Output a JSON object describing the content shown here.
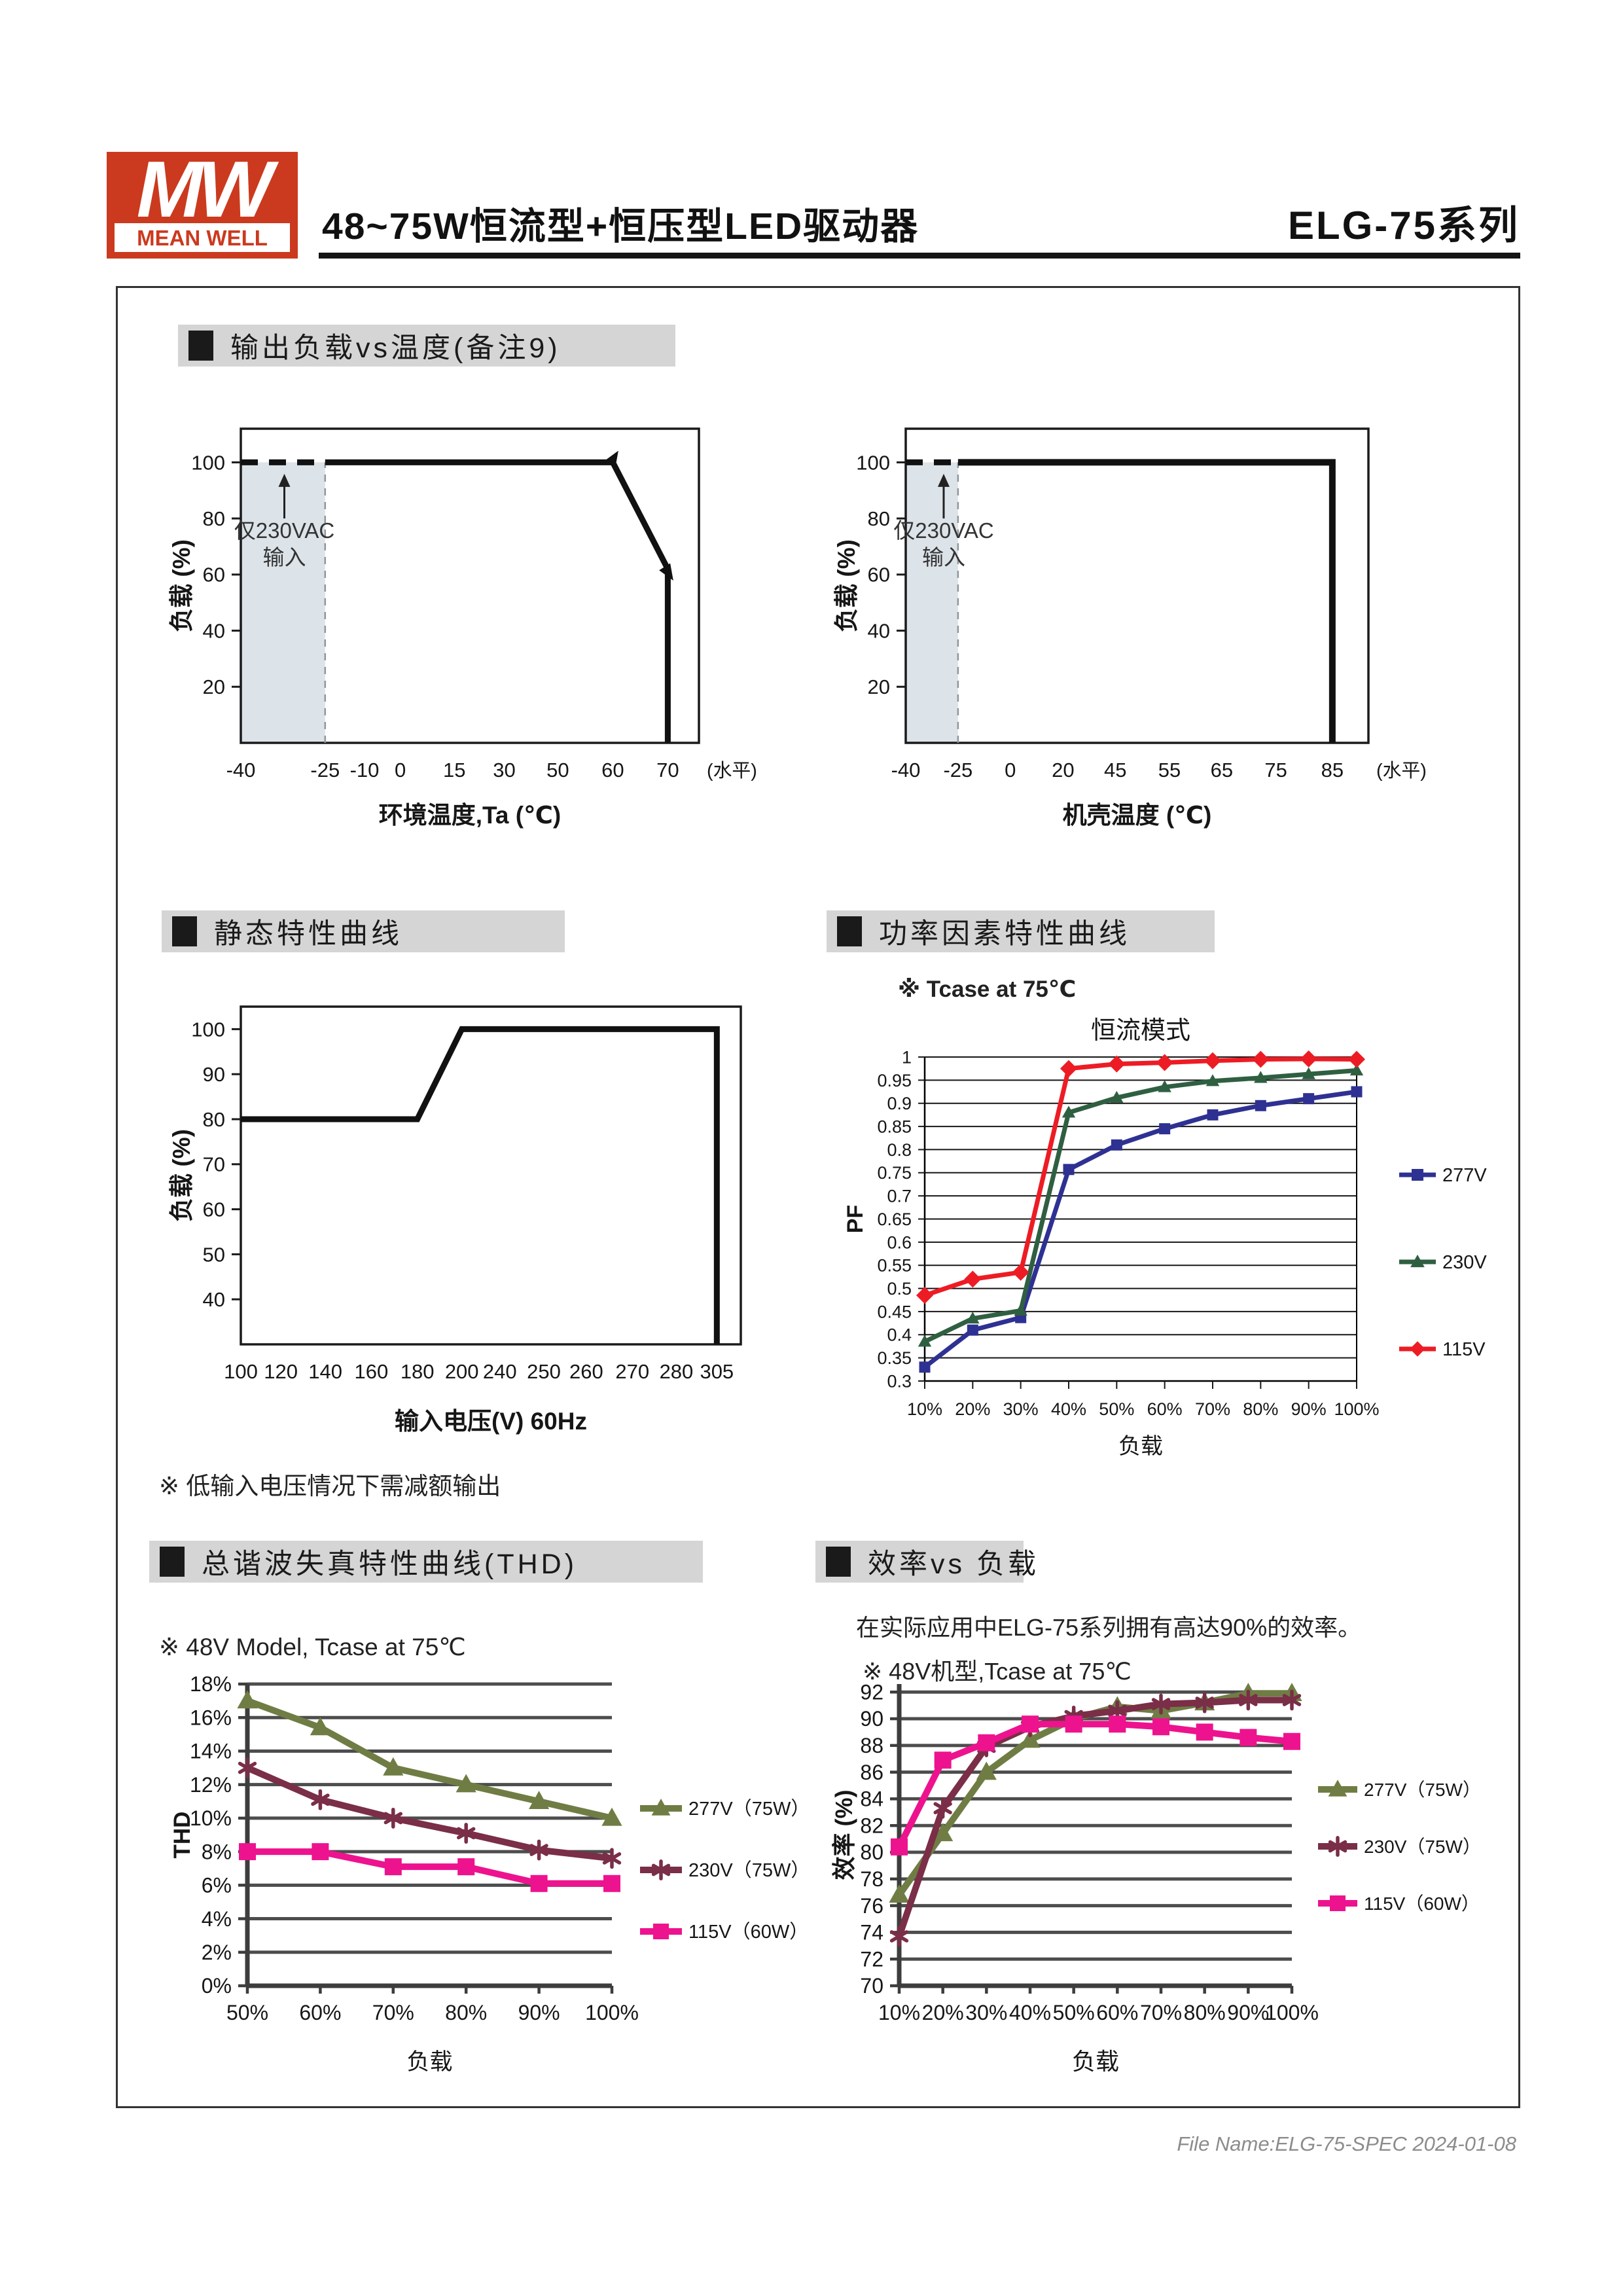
{
  "header": {
    "logo_mw": "MW",
    "logo_brand": "MEAN WELL",
    "title": "48~75W恒流型+恒压型LED驱动器",
    "series": "ELG-75系列"
  },
  "sections": {
    "derating": {
      "label": "输出负载vs温度(备注9)"
    },
    "static": {
      "label": "静态特性曲线"
    },
    "pf": {
      "label": "功率因素特性曲线"
    },
    "thd": {
      "label": "总谐波失真特性曲线(THD)"
    },
    "eff": {
      "label": "效率vs 负载"
    }
  },
  "notes": {
    "pf": "※ Tcase at 75℃",
    "static": "※ 低输入电压情况下需减额输出",
    "thd": "※ 48V Model, Tcase at 75℃",
    "eff_desc": "在实际应用中ELG-75系列拥有高达90%的效率。",
    "eff": "※ 48V机型,Tcase at 75℃"
  },
  "footer": "File Name:ELG-75-SPEC 2024-01-08",
  "chart_data": [
    {
      "id": "amb",
      "type": "line",
      "title": "",
      "xlabel": "环境温度,Ta (℃)",
      "ylabel": "负载 (%)",
      "x_axis_note": "(水平)",
      "ylim": [
        0,
        112
      ],
      "yticks": [
        20,
        40,
        60,
        80,
        100
      ],
      "ytick_labels": [
        "20",
        "40",
        "60",
        "80",
        "100"
      ],
      "xticks": [
        {
          "label": "-40",
          "f": 0
        },
        {
          "label": "-25",
          "f": 0.184
        },
        {
          "label": "-10",
          "f": 0.27
        },
        {
          "label": "0",
          "f": 0.348
        },
        {
          "label": "15",
          "f": 0.466
        },
        {
          "label": "30",
          "f": 0.575
        },
        {
          "label": "50",
          "f": 0.692
        },
        {
          "label": "60",
          "f": 0.812
        },
        {
          "label": "70",
          "f": 0.932
        }
      ],
      "shade": {
        "f0": 0,
        "f1": 0.184,
        "v0": 0,
        "v1": 100,
        "color": "#dce3e9"
      },
      "lines": [
        {
          "name": "dashed-100pct-230vac",
          "color": "#111111",
          "width": 9,
          "dash": [
            26,
            17
          ],
          "points": [
            [
              0,
              100
            ],
            [
              0.184,
              100
            ]
          ]
        },
        {
          "name": "shade-boundary-dashed",
          "color": "#8f979e",
          "width": 2.5,
          "dash": [
            11,
            10
          ],
          "points": [
            [
              0.184,
              0
            ],
            [
              0.184,
              100
            ]
          ]
        },
        {
          "name": "derating-curve",
          "color": "#111111",
          "width": 9,
          "points": [
            [
              0.184,
              100
            ],
            [
              0.812,
              100
            ],
            [
              0.932,
              62
            ],
            [
              0.932,
              0
            ]
          ]
        }
      ],
      "arrows": [
        {
          "f": 0.812,
          "v": 101,
          "rot": 32
        },
        {
          "f": 0.932,
          "v": 61,
          "rot": 148
        }
      ],
      "annotation": {
        "lines": [
          "仅230VAC",
          "输入"
        ],
        "f": 0.095,
        "text_v": [
          73,
          63.5
        ],
        "arrow_v": [
          80,
          95
        ]
      }
    },
    {
      "id": "case",
      "type": "line",
      "title": "",
      "xlabel": "机壳温度 (℃)",
      "ylabel": "负载 (%)",
      "x_axis_note": "(水平)",
      "ylim": [
        0,
        112
      ],
      "yticks": [
        20,
        40,
        60,
        80,
        100
      ],
      "ytick_labels": [
        "20",
        "40",
        "60",
        "80",
        "100"
      ],
      "xticks": [
        {
          "label": "-40",
          "f": 0
        },
        {
          "label": "-25",
          "f": 0.113
        },
        {
          "label": "0",
          "f": 0.226
        },
        {
          "label": "20",
          "f": 0.34
        },
        {
          "label": "45",
          "f": 0.453
        },
        {
          "label": "55",
          "f": 0.57
        },
        {
          "label": "65",
          "f": 0.683
        },
        {
          "label": "75",
          "f": 0.8
        },
        {
          "label": "85",
          "f": 0.922
        }
      ],
      "shade": {
        "f0": 0,
        "f1": 0.113,
        "v0": 0,
        "v1": 100,
        "color": "#dce3e9"
      },
      "lines": [
        {
          "name": "dashed-100pct-230vac",
          "color": "#111111",
          "width": 9,
          "dash": [
            26,
            17
          ],
          "points": [
            [
              0,
              100
            ],
            [
              0.113,
              100
            ]
          ]
        },
        {
          "name": "shade-boundary-dashed",
          "color": "#8f979e",
          "width": 2.5,
          "dash": [
            11,
            10
          ],
          "points": [
            [
              0.113,
              0
            ],
            [
              0.113,
              100
            ]
          ]
        },
        {
          "name": "derating-curve",
          "color": "#111111",
          "width": 10,
          "points": [
            [
              0.113,
              100
            ],
            [
              0.922,
              100
            ],
            [
              0.922,
              0
            ]
          ]
        }
      ],
      "annotation": {
        "lines": [
          "仅230VAC",
          "输入"
        ],
        "f": 0.082,
        "text_v": [
          73,
          63.5
        ],
        "arrow_v": [
          80,
          95
        ]
      }
    },
    {
      "id": "static",
      "type": "line",
      "title": "",
      "xlabel": "输入电压(V) 60Hz",
      "ylabel": "负载 (%)",
      "ylim": [
        30,
        105
      ],
      "yticks": [
        40,
        50,
        60,
        70,
        80,
        90,
        100
      ],
      "ytick_labels": [
        "40",
        "50",
        "60",
        "70",
        "80",
        "90",
        "100"
      ],
      "xticks": [
        {
          "label": "100",
          "f": 0
        },
        {
          "label": "120",
          "f": 0.08
        },
        {
          "label": "140",
          "f": 0.169
        },
        {
          "label": "160",
          "f": 0.261
        },
        {
          "label": "180",
          "f": 0.353
        },
        {
          "label": "200",
          "f": 0.442
        },
        {
          "label": "240",
          "f": 0.518
        },
        {
          "label": "250",
          "f": 0.606
        },
        {
          "label": "260",
          "f": 0.691
        },
        {
          "label": "270",
          "f": 0.783
        },
        {
          "label": "280",
          "f": 0.871
        },
        {
          "label": "305",
          "f": 0.952
        }
      ],
      "lines": [
        {
          "name": "static-curve",
          "color": "#111111",
          "width": 9,
          "points": [
            [
              0,
              80
            ],
            [
              0.353,
              80
            ],
            [
              0.442,
              100
            ],
            [
              0.952,
              100
            ],
            [
              0.952,
              30
            ]
          ]
        }
      ]
    },
    {
      "id": "pf",
      "type": "line-category",
      "title": "恒流模式",
      "xlabel": "负载",
      "ylabel": "PF",
      "categories": [
        "10%",
        "20%",
        "30%",
        "40%",
        "50%",
        "60%",
        "70%",
        "80%",
        "90%",
        "100%"
      ],
      "ylim": [
        0.3,
        1.0
      ],
      "yticks": [
        0.3,
        0.35,
        0.4,
        0.45,
        0.5,
        0.55,
        0.6,
        0.65,
        0.7,
        0.75,
        0.8,
        0.85,
        0.9,
        0.95,
        1
      ],
      "ytick_labels": [
        "0.3",
        "0.35",
        "0.4",
        "0.45",
        "0.5",
        "0.55",
        "0.6",
        "0.65",
        "0.7",
        "0.75",
        "0.8",
        "0.85",
        "0.9",
        "0.95",
        "1"
      ],
      "legend_position": "right",
      "series": [
        {
          "name": "277V",
          "color": "#2E3192",
          "marker": "square",
          "values": [
            0.33,
            0.41,
            0.437,
            0.757,
            0.81,
            0.845,
            0.875,
            0.895,
            0.91,
            0.925
          ]
        },
        {
          "name": "230V",
          "color": "#2F5F41",
          "marker": "triangle",
          "values": [
            0.385,
            0.435,
            0.452,
            0.88,
            0.912,
            0.935,
            0.948,
            0.955,
            0.963,
            0.971
          ]
        },
        {
          "name": "115V",
          "color": "#ED1C24",
          "marker": "diamond",
          "values": [
            0.485,
            0.52,
            0.535,
            0.975,
            0.985,
            0.988,
            0.992,
            0.995,
            0.996,
            0.995
          ]
        }
      ]
    },
    {
      "id": "thd",
      "type": "line-category",
      "title": "",
      "xlabel": "负载",
      "ylabel": "THD",
      "categories": [
        "50%",
        "60%",
        "70%",
        "80%",
        "90%",
        "100%"
      ],
      "ylim": [
        0,
        18
      ],
      "yticks": [
        0,
        2,
        4,
        6,
        8,
        10,
        12,
        14,
        16,
        18
      ],
      "ytick_labels": [
        "0%",
        "2%",
        "4%",
        "6%",
        "8%",
        "10%",
        "12%",
        "14%",
        "16%",
        "18%"
      ],
      "legend_position": "right",
      "series": [
        {
          "name": "277V（75W）",
          "color": "#6F7D44",
          "marker": "triangle",
          "values": [
            17,
            15.4,
            13,
            12,
            11,
            10
          ]
        },
        {
          "name": "230V（75W）",
          "color": "#7A2E47",
          "marker": "star",
          "values": [
            13,
            11.1,
            10,
            9.1,
            8.1,
            7.6
          ]
        },
        {
          "name": "115V（60W）",
          "color": "#ED138E",
          "marker": "square",
          "values": [
            8,
            8,
            7.1,
            7.1,
            6.1,
            6.1
          ]
        }
      ]
    },
    {
      "id": "eff",
      "type": "line-category",
      "title": "",
      "xlabel": "负载",
      "ylabel": "效率 (%)",
      "categories": [
        "10%",
        "20%",
        "30%",
        "40%",
        "50%",
        "60%",
        "70%",
        "80%",
        "90%",
        "100%"
      ],
      "ylim": [
        70,
        92.6
      ],
      "yticks": [
        70,
        72,
        74,
        76,
        78,
        80,
        82,
        84,
        86,
        88,
        90,
        92
      ],
      "ytick_labels": [
        "70",
        "72",
        "74",
        "76",
        "78",
        "80",
        "82",
        "84",
        "86",
        "88",
        "90",
        "92"
      ],
      "legend_position": "right",
      "series": [
        {
          "name": "277V（75W）",
          "color": "#6F7D44",
          "marker": "triangle",
          "values": [
            76.8,
            81.4,
            86,
            88.4,
            90,
            90.9,
            90.6,
            91.2,
            91.9,
            91.9
          ]
        },
        {
          "name": "230V（75W）",
          "color": "#7A2E47",
          "marker": "star",
          "values": [
            73.7,
            83.3,
            87.9,
            89.4,
            90.2,
            90.6,
            91.1,
            91.2,
            91.4,
            91.4
          ]
        },
        {
          "name": "115V（60W）",
          "color": "#ED138E",
          "marker": "square",
          "values": [
            80.4,
            86.9,
            88.2,
            89.6,
            89.6,
            89.6,
            89.4,
            89,
            88.6,
            88.3
          ]
        }
      ]
    }
  ]
}
